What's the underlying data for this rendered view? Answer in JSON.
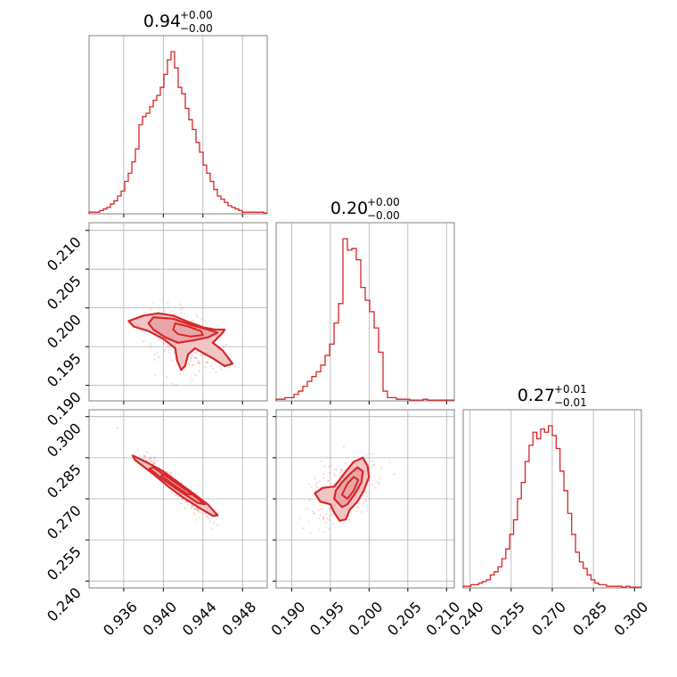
{
  "chart_data": {
    "type": "corner",
    "color": "#d62728",
    "parameters": [
      {
        "title_value": "0.94",
        "title_plus": "+0.00",
        "title_minus": "−0.00",
        "range": [
          0.9325,
          0.9505
        ]
      },
      {
        "title_value": "0.20",
        "title_plus": "+0.00",
        "title_minus": "−0.00",
        "range": [
          0.188,
          0.211
        ]
      },
      {
        "title_value": "0.27",
        "title_plus": "+0.01",
        "title_minus": "−0.01",
        "range": [
          0.2375,
          0.3025
        ]
      }
    ],
    "ticks": [
      {
        "values": [
          0.936,
          0.94,
          0.944,
          0.948
        ],
        "labels": [
          "0.936",
          "0.940",
          "0.944",
          "0.948"
        ]
      },
      {
        "values": [
          0.19,
          0.195,
          0.2,
          0.205,
          0.21
        ],
        "labels": [
          "0.190",
          "0.195",
          "0.200",
          "0.205",
          "0.210"
        ]
      },
      {
        "values": [
          0.24,
          0.255,
          0.27,
          0.285,
          0.3
        ],
        "labels": [
          "0.240",
          "0.255",
          "0.270",
          "0.285",
          "0.300"
        ]
      }
    ],
    "histograms": [
      {
        "param": 0,
        "bin_start": 0.9325,
        "bin_end": 0.9505,
        "counts": [
          0.01,
          0.01,
          0.01,
          0.02,
          0.03,
          0.04,
          0.06,
          0.08,
          0.11,
          0.14,
          0.2,
          0.25,
          0.32,
          0.4,
          0.55,
          0.6,
          0.62,
          0.66,
          0.7,
          0.73,
          0.78,
          0.86,
          0.95,
          1.0,
          0.9,
          0.78,
          0.74,
          0.65,
          0.58,
          0.52,
          0.44,
          0.38,
          0.3,
          0.25,
          0.2,
          0.15,
          0.11,
          0.09,
          0.07,
          0.05,
          0.04,
          0.03,
          0.02,
          0.01,
          0.01,
          0.01,
          0.01,
          0.01,
          0.01,
          0.005
        ]
      },
      {
        "param": 1,
        "bin_start": 0.188,
        "bin_end": 0.211,
        "counts": [
          0.01,
          0.01,
          0.02,
          0.02,
          0.04,
          0.06,
          0.09,
          0.12,
          0.15,
          0.18,
          0.22,
          0.28,
          0.35,
          0.48,
          0.6,
          1.0,
          0.93,
          0.94,
          0.87,
          0.7,
          0.62,
          0.55,
          0.45,
          0.3,
          0.06,
          0.02,
          0.02,
          0.01,
          0.01,
          0.01,
          0.005,
          0.005,
          0.005,
          0.01,
          0.005,
          0.005,
          0.005,
          0.005,
          0.005,
          0.005
        ]
      },
      {
        "param": 2,
        "bin_start": 0.2375,
        "bin_end": 0.3025,
        "counts": [
          0.01,
          0.01,
          0.02,
          0.02,
          0.03,
          0.04,
          0.05,
          0.08,
          0.1,
          0.13,
          0.18,
          0.24,
          0.33,
          0.42,
          0.55,
          0.65,
          0.78,
          0.88,
          0.96,
          0.92,
          0.98,
          0.96,
          1.0,
          0.94,
          0.86,
          0.72,
          0.6,
          0.46,
          0.33,
          0.22,
          0.16,
          0.12,
          0.08,
          0.05,
          0.03,
          0.02,
          0.02,
          0.01,
          0.01,
          0.01,
          0.01,
          0.005,
          0.01,
          0.005,
          0.005,
          0.005
        ]
      }
    ],
    "contours_2d": [
      {
        "x_param": 0,
        "y_param": 1,
        "outer": [
          [
            0.9365,
            0.1983
          ],
          [
            0.938,
            0.199
          ],
          [
            0.9395,
            0.1993
          ],
          [
            0.941,
            0.199
          ],
          [
            0.9425,
            0.1982
          ],
          [
            0.944,
            0.1975
          ],
          [
            0.9452,
            0.1972
          ],
          [
            0.9462,
            0.1972
          ],
          [
            0.946,
            0.1968
          ],
          [
            0.945,
            0.1955
          ],
          [
            0.946,
            0.1945
          ],
          [
            0.947,
            0.1928
          ],
          [
            0.9462,
            0.1925
          ],
          [
            0.945,
            0.1935
          ],
          [
            0.944,
            0.1942
          ],
          [
            0.9432,
            0.1948
          ],
          [
            0.9425,
            0.194
          ],
          [
            0.9422,
            0.1925
          ],
          [
            0.9418,
            0.192
          ],
          [
            0.9414,
            0.1932
          ],
          [
            0.9412,
            0.1948
          ],
          [
            0.94,
            0.196
          ],
          [
            0.9385,
            0.197
          ],
          [
            0.937,
            0.1976
          ],
          [
            0.9365,
            0.1983
          ]
        ],
        "inner": [
          [
            0.939,
            0.1988
          ],
          [
            0.941,
            0.1986
          ],
          [
            0.9428,
            0.1978
          ],
          [
            0.9445,
            0.1972
          ],
          [
            0.9455,
            0.1968
          ],
          [
            0.9445,
            0.1962
          ],
          [
            0.943,
            0.1958
          ],
          [
            0.9415,
            0.1955
          ],
          [
            0.9402,
            0.1962
          ],
          [
            0.939,
            0.1972
          ],
          [
            0.9385,
            0.198
          ],
          [
            0.939,
            0.1988
          ]
        ],
        "core": [
          [
            0.9412,
            0.198
          ],
          [
            0.9425,
            0.1976
          ],
          [
            0.9438,
            0.197
          ],
          [
            0.944,
            0.1965
          ],
          [
            0.9428,
            0.1963
          ],
          [
            0.9415,
            0.1966
          ],
          [
            0.941,
            0.1972
          ],
          [
            0.9412,
            0.198
          ]
        ]
      },
      {
        "x_param": 0,
        "y_param": 2,
        "outer": [
          [
            0.9369,
            0.2858
          ],
          [
            0.9385,
            0.283
          ],
          [
            0.94,
            0.28
          ],
          [
            0.9415,
            0.276
          ],
          [
            0.943,
            0.272
          ],
          [
            0.9445,
            0.268
          ],
          [
            0.9455,
            0.264
          ],
          [
            0.945,
            0.2638
          ],
          [
            0.9435,
            0.267
          ],
          [
            0.942,
            0.2705
          ],
          [
            0.9405,
            0.2745
          ],
          [
            0.939,
            0.279
          ],
          [
            0.9372,
            0.284
          ],
          [
            0.9369,
            0.2858
          ]
        ],
        "inner": [
          [
            0.939,
            0.2815
          ],
          [
            0.941,
            0.2765
          ],
          [
            0.9428,
            0.272
          ],
          [
            0.9442,
            0.268
          ],
          [
            0.9435,
            0.2685
          ],
          [
            0.9418,
            0.2725
          ],
          [
            0.94,
            0.277
          ],
          [
            0.9386,
            0.281
          ],
          [
            0.939,
            0.2815
          ]
        ],
        "core": [
          [
            0.9402,
            0.279
          ],
          [
            0.9418,
            0.2748
          ],
          [
            0.943,
            0.2715
          ],
          [
            0.9424,
            0.2718
          ],
          [
            0.941,
            0.2752
          ],
          [
            0.9398,
            0.2785
          ],
          [
            0.9402,
            0.279
          ]
        ]
      },
      {
        "x_param": 1,
        "y_param": 2,
        "outer": [
          [
            0.1937,
            0.269
          ],
          [
            0.195,
            0.268
          ],
          [
            0.1955,
            0.265
          ],
          [
            0.1962,
            0.262
          ],
          [
            0.197,
            0.2625
          ],
          [
            0.1975,
            0.266
          ],
          [
            0.1985,
            0.269
          ],
          [
            0.1993,
            0.273
          ],
          [
            0.2,
            0.278
          ],
          [
            0.1998,
            0.282
          ],
          [
            0.1992,
            0.285
          ],
          [
            0.198,
            0.2835
          ],
          [
            0.197,
            0.28
          ],
          [
            0.1962,
            0.277
          ],
          [
            0.1955,
            0.2745
          ],
          [
            0.194,
            0.274
          ],
          [
            0.193,
            0.272
          ],
          [
            0.1937,
            0.269
          ]
        ],
        "inner": [
          [
            0.1955,
            0.27
          ],
          [
            0.1965,
            0.267
          ],
          [
            0.1972,
            0.268
          ],
          [
            0.1982,
            0.272
          ],
          [
            0.199,
            0.276
          ],
          [
            0.1992,
            0.28
          ],
          [
            0.1985,
            0.2815
          ],
          [
            0.1975,
            0.279
          ],
          [
            0.1965,
            0.276
          ],
          [
            0.1957,
            0.273
          ],
          [
            0.1955,
            0.27
          ]
        ],
        "core": [
          [
            0.1965,
            0.2715
          ],
          [
            0.1972,
            0.27
          ],
          [
            0.198,
            0.273
          ],
          [
            0.1986,
            0.277
          ],
          [
            0.198,
            0.278
          ],
          [
            0.1972,
            0.2755
          ],
          [
            0.1965,
            0.2715
          ]
        ]
      }
    ]
  }
}
